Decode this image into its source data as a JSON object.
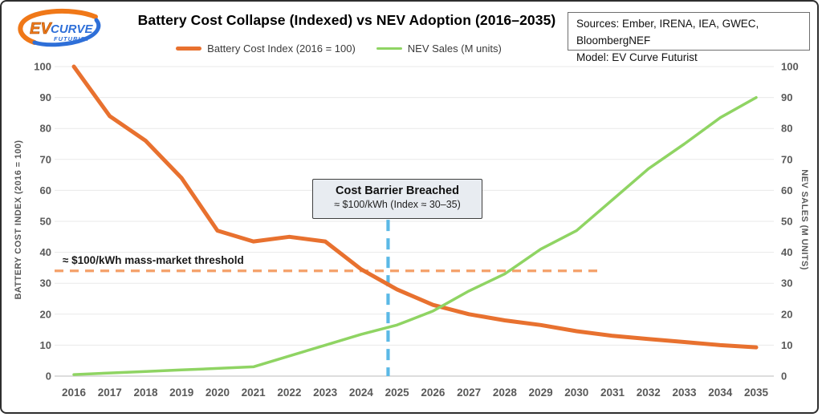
{
  "header": {
    "sources": [
      "Sources: Ember, IRENA, IEA, GWEC, BloombergNEF",
      "Model: EV Curve Futurist"
    ]
  },
  "logo": {
    "ev": "EV",
    "curve": "CURVE",
    "futurist": "FUTURIST"
  },
  "chart_data": {
    "type": "line",
    "title": "Battery Cost Collapse (Indexed) vs NEV Adoption (2016–2035)",
    "x": [
      2016,
      2017,
      2018,
      2019,
      2020,
      2021,
      2022,
      2023,
      2024,
      2025,
      2026,
      2027,
      2028,
      2029,
      2030,
      2031,
      2032,
      2033,
      2034,
      2035
    ],
    "series": [
      {
        "name": "Battery Cost Index (2016 = 100)",
        "color": "#E8712F",
        "width": 5,
        "values": [
          100,
          84,
          76,
          64,
          47,
          43.5,
          45,
          43.5,
          34.5,
          28,
          23,
          20,
          18,
          16.5,
          14.5,
          13,
          12,
          11,
          10,
          9.3
        ]
      },
      {
        "name": "NEV Sales (M units)",
        "color": "#8FD463",
        "width": 3.5,
        "values": [
          0.5,
          1,
          1.5,
          2,
          2.5,
          3,
          6.5,
          10,
          13.5,
          16.5,
          21,
          27.5,
          33,
          41,
          47,
          57,
          67,
          75,
          83.5,
          90
        ]
      }
    ],
    "ylim": [
      0,
      100
    ],
    "y_ticks": [
      0,
      10,
      20,
      30,
      40,
      50,
      60,
      70,
      80,
      90,
      100
    ],
    "left_axis_title": "BATTERY COST INDEX (2016 = 100)",
    "right_axis_title": "NEV SALES (M UNITS)",
    "grid": true,
    "legend_position": "top-center",
    "colors": {
      "grid": "#e9e9e9",
      "axis_line": "#d2d2d2",
      "tick_label": "#595959"
    },
    "annotations": {
      "threshold": {
        "label": "≈ $100/kWh mass-market threshold",
        "y": 34,
        "x_end_year": 2030.7,
        "color": "#F4A069"
      },
      "vline": {
        "year": 2024.75,
        "y_top_value": 50.5,
        "color": "#5BB9E6"
      },
      "callout": {
        "title": "Cost Barrier Breached",
        "subtitle": "≈ $100/kWh (Index ≈ 30–35)"
      }
    }
  }
}
